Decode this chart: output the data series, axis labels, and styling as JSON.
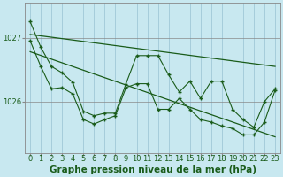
{
  "bg_color": "#c8e8f0",
  "plot_bg_color": "#c8e8f0",
  "line_color": "#1a5c1a",
  "grid_color": "#a0c8d8",
  "text_color": "#1a5c1a",
  "xlabel": "Graphe pression niveau de la mer (hPa)",
  "xlabel_fontsize": 7.5,
  "tick_fontsize": 6,
  "ytick_labels": [
    "1027",
    "1026"
  ],
  "ytick_values": [
    1027.0,
    1026.0
  ],
  "ylim": [
    1025.2,
    1027.55
  ],
  "xlim": [
    -0.5,
    23.5
  ],
  "xtick_values": [
    0,
    1,
    2,
    3,
    4,
    5,
    6,
    7,
    8,
    9,
    10,
    11,
    12,
    13,
    14,
    15,
    16,
    17,
    18,
    19,
    20,
    21,
    22,
    23
  ],
  "series1": [
    1027.25,
    1026.85,
    1026.55,
    1026.45,
    1026.3,
    1025.85,
    1025.78,
    1025.82,
    1025.82,
    1026.28,
    1026.72,
    1026.72,
    1026.72,
    1026.42,
    1026.15,
    1026.32,
    1026.05,
    1026.32,
    1026.32,
    1025.88,
    1025.72,
    1025.6,
    1026.0,
    1026.2
  ],
  "series2": [
    1026.95,
    1026.55,
    1026.2,
    1026.22,
    1026.12,
    1025.72,
    1025.65,
    1025.72,
    1025.78,
    1026.22,
    1026.28,
    1026.28,
    1025.88,
    1025.88,
    1026.05,
    1025.88,
    1025.72,
    1025.68,
    1025.62,
    1025.58,
    1025.48,
    1025.48,
    1025.68,
    1026.18
  ],
  "trend1_x": [
    0,
    23
  ],
  "trend1_y": [
    1027.05,
    1026.55
  ],
  "trend2_x": [
    0,
    23
  ],
  "trend2_y": [
    1026.78,
    1025.45
  ]
}
